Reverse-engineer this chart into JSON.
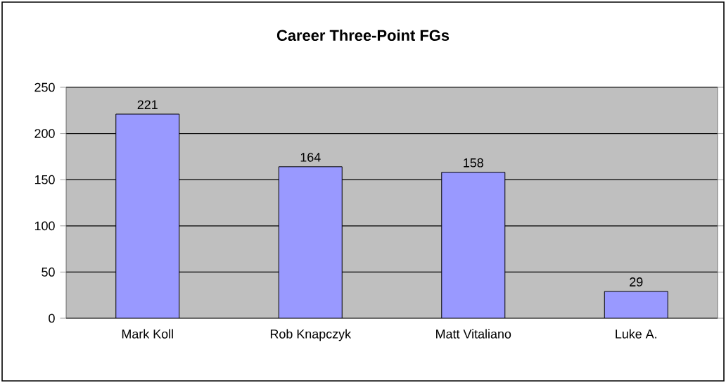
{
  "chart_data": {
    "type": "bar",
    "title": "Career Three-Point FGs",
    "categories": [
      "Mark Koll",
      "Rob Knapczyk",
      "Matt Vitaliano",
      "Luke A."
    ],
    "values": [
      221,
      164,
      158,
      29
    ],
    "color": "#9999ff",
    "ylim": [
      0,
      250
    ],
    "yticks": [
      0,
      50,
      100,
      150,
      200,
      250
    ],
    "grid": "y",
    "data_labels": true
  }
}
